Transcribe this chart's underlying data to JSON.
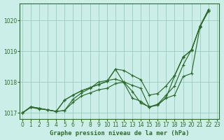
{
  "title": "Graphe pression niveau de la mer (hPa)",
  "bg_color": "#cceee8",
  "grid_color": "#99ccbb",
  "line_color": "#2d6a2d",
  "ylim": [
    1016.8,
    1020.55
  ],
  "xlim": [
    -0.3,
    23.3
  ],
  "yticks": [
    1017,
    1018,
    1019,
    1020
  ],
  "xtick_labels": [
    "0",
    "1",
    "2",
    "3",
    "4",
    "5",
    "6",
    "7",
    "8",
    "9",
    "10",
    "11",
    "12",
    "13",
    "14",
    "15",
    "16",
    "17",
    "18",
    "19",
    "20",
    "21",
    "22",
    "23"
  ],
  "series": [
    {
      "x": [
        0,
        1,
        2,
        3,
        4,
        5,
        6,
        7,
        8,
        9,
        10,
        11,
        12,
        13,
        14,
        15,
        16,
        17,
        18,
        19,
        20,
        21,
        22
      ],
      "y": [
        1017.0,
        1017.2,
        1017.15,
        1017.1,
        1017.05,
        1017.08,
        1017.35,
        1017.55,
        1017.65,
        1017.75,
        1017.8,
        1017.95,
        1018.0,
        1017.9,
        1017.8,
        1017.2,
        1017.25,
        1017.5,
        1018.2,
        1018.8,
        1019.05,
        1019.8,
        1020.3
      ]
    },
    {
      "x": [
        0,
        1,
        2,
        3,
        4,
        5,
        6,
        7,
        8,
        9,
        10,
        11,
        12,
        13,
        14,
        15,
        16,
        17,
        18,
        19,
        20,
        21,
        22
      ],
      "y": [
        1017.0,
        1017.18,
        1017.13,
        1017.1,
        1017.05,
        1017.08,
        1017.45,
        1017.65,
        1017.8,
        1018.0,
        1018.05,
        1018.1,
        1018.0,
        1017.7,
        1017.32,
        1017.2,
        1017.28,
        1017.58,
        1017.88,
        1018.55,
        1019.05,
        1019.8,
        1020.3
      ]
    },
    {
      "x": [
        0,
        1,
        2,
        3,
        4,
        5,
        6,
        7,
        8,
        9,
        10,
        11,
        12,
        13,
        14,
        15,
        16,
        17,
        18,
        19,
        20,
        21,
        22
      ],
      "y": [
        1017.0,
        1017.2,
        1017.15,
        1017.1,
        1017.05,
        1017.42,
        1017.58,
        1017.72,
        1017.82,
        1017.92,
        1018.02,
        1018.42,
        1018.38,
        1018.22,
        1018.08,
        1017.58,
        1017.63,
        1017.88,
        1018.22,
        1018.82,
        1019.02,
        1019.82,
        1020.35
      ]
    },
    {
      "x": [
        0,
        1,
        2,
        3,
        4,
        5,
        6,
        7,
        8,
        9,
        10,
        11,
        12,
        13,
        14,
        15,
        16,
        17,
        18,
        19,
        20,
        21,
        22
      ],
      "y": [
        1017.0,
        1017.2,
        1017.15,
        1017.1,
        1017.05,
        1017.42,
        1017.58,
        1017.72,
        1017.82,
        1017.92,
        1018.02,
        1018.42,
        1017.98,
        1017.48,
        1017.38,
        1017.18,
        1017.28,
        1017.48,
        1017.58,
        1018.18,
        1018.28,
        1019.78,
        1020.35
      ]
    }
  ]
}
